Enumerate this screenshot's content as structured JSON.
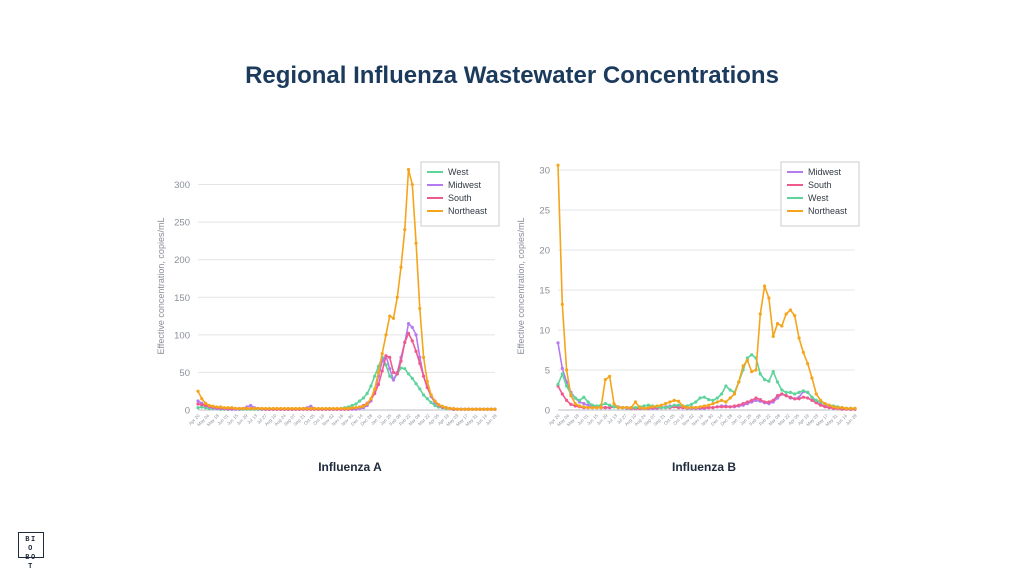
{
  "title": "Regional Influenza Wastewater Concentrations",
  "logo_text": "BIO BOT",
  "charts": [
    {
      "caption": "Influenza A"
    },
    {
      "caption": "Influenza B"
    }
  ],
  "chart_data": [
    {
      "type": "line",
      "title": "Influenza A",
      "xlabel": "",
      "ylabel": "Effective concentration, copies/mL",
      "ylim": [
        0,
        330
      ],
      "yticks": [
        0,
        50,
        100,
        150,
        200,
        250,
        300
      ],
      "grid": true,
      "legend_position": "top-right",
      "x_tick_labels": [
        "Apr 20",
        "May 04",
        "May 18",
        "Jun 01",
        "Jun 15",
        "Jun 29",
        "Jul 13",
        "Jul 27",
        "Aug 10",
        "Aug 24",
        "Sep 07",
        "Sep 21",
        "Oct 05",
        "Oct 19",
        "Nov 02",
        "Nov 16",
        "Nov 30",
        "Dec 14",
        "Dec 28",
        "Jan 11",
        "Jan 25",
        "Feb 08",
        "Feb 22",
        "Mar 08",
        "Mar 22",
        "Apr 05",
        "Apr 19",
        "May 03",
        "May 17",
        "May 31",
        "Jun 14",
        "Jun 28"
      ],
      "series": [
        {
          "name": "West",
          "color": "#5ed39a",
          "values": [
            3,
            4,
            3,
            2,
            2,
            2,
            1,
            1,
            1,
            1,
            1,
            1,
            1,
            1,
            1,
            1,
            1,
            1,
            1,
            1,
            1,
            1,
            1,
            1,
            1,
            1,
            1,
            1,
            1,
            1,
            1,
            1,
            1,
            1,
            1,
            1,
            1,
            1,
            2,
            3,
            4,
            6,
            8,
            12,
            16,
            22,
            32,
            45,
            58,
            70,
            60,
            45,
            40,
            48,
            56,
            55,
            48,
            42,
            35,
            28,
            20,
            15,
            10,
            6,
            4,
            3,
            2,
            2,
            1,
            1,
            1,
            1,
            1,
            1,
            1,
            1,
            1,
            1,
            1,
            1
          ]
        },
        {
          "name": "Midwest",
          "color": "#b57aef",
          "values": [
            12,
            9,
            6,
            4,
            3,
            2,
            2,
            2,
            1,
            1,
            1,
            1,
            2,
            4,
            6,
            3,
            2,
            1,
            1,
            1,
            1,
            1,
            1,
            1,
            1,
            1,
            1,
            1,
            2,
            3,
            5,
            2,
            1,
            1,
            1,
            1,
            1,
            1,
            1,
            1,
            1,
            1,
            1,
            2,
            3,
            6,
            12,
            25,
            45,
            65,
            72,
            55,
            40,
            50,
            70,
            90,
            115,
            110,
            100,
            70,
            45,
            30,
            18,
            10,
            6,
            4,
            3,
            2,
            1,
            1,
            1,
            1,
            1,
            1,
            1,
            1,
            1,
            1,
            1,
            1
          ]
        },
        {
          "name": "South",
          "color": "#ef5a8e",
          "values": [
            8,
            7,
            6,
            5,
            4,
            3,
            3,
            2,
            2,
            2,
            2,
            2,
            2,
            2,
            2,
            2,
            2,
            2,
            1,
            1,
            1,
            1,
            1,
            1,
            1,
            1,
            1,
            1,
            1,
            1,
            1,
            1,
            1,
            1,
            1,
            1,
            1,
            1,
            1,
            1,
            1,
            2,
            3,
            4,
            6,
            9,
            14,
            22,
            34,
            52,
            72,
            70,
            50,
            48,
            65,
            90,
            102,
            92,
            78,
            62,
            45,
            30,
            20,
            12,
            7,
            4,
            3,
            2,
            1,
            1,
            1,
            1,
            1,
            1,
            1,
            1,
            1,
            1,
            1,
            1
          ]
        },
        {
          "name": "Northeast",
          "color": "#f4a51c",
          "values": [
            25,
            15,
            9,
            6,
            5,
            4,
            4,
            3,
            3,
            3,
            2,
            2,
            2,
            2,
            2,
            2,
            2,
            2,
            2,
            2,
            2,
            2,
            2,
            2,
            2,
            2,
            2,
            2,
            2,
            2,
            2,
            2,
            2,
            2,
            2,
            2,
            2,
            2,
            2,
            2,
            2,
            3,
            3,
            4,
            5,
            8,
            15,
            28,
            50,
            75,
            100,
            125,
            122,
            150,
            190,
            240,
            320,
            300,
            222,
            135,
            70,
            38,
            20,
            12,
            7,
            5,
            3,
            2,
            2,
            1,
            1,
            1,
            1,
            1,
            1,
            1,
            1,
            1,
            1,
            1
          ]
        }
      ]
    },
    {
      "type": "line",
      "title": "Influenza B",
      "xlabel": "",
      "ylabel": "Effective concentration, copies/mL",
      "ylim": [
        0,
        31
      ],
      "yticks": [
        0,
        5,
        10,
        15,
        20,
        25,
        30
      ],
      "grid": true,
      "legend_position": "top-right",
      "x_tick_labels": [
        "Apr 20",
        "May 04",
        "May 18",
        "Jun 01",
        "Jun 15",
        "Jun 29",
        "Jul 13",
        "Jul 27",
        "Aug 10",
        "Aug 24",
        "Sep 07",
        "Sep 21",
        "Oct 05",
        "Oct 19",
        "Nov 02",
        "Nov 16",
        "Nov 30",
        "Dec 14",
        "Dec 28",
        "Jan 11",
        "Jan 25",
        "Feb 08",
        "Feb 22",
        "Mar 08",
        "Mar 22",
        "Apr 05",
        "Apr 19",
        "May 03",
        "May 17",
        "May 31",
        "Jun 14",
        "Jun 28"
      ],
      "series": [
        {
          "name": "Midwest",
          "color": "#b57aef",
          "values": [
            8.4,
            5.2,
            3.5,
            2.2,
            1.5,
            1.0,
            0.8,
            0.6,
            0.5,
            0.4,
            0.3,
            0.3,
            0.3,
            0.4,
            0.4,
            0.3,
            0.2,
            0.2,
            0.2,
            0.2,
            0.2,
            0.2,
            0.2,
            0.2,
            0.3,
            0.4,
            0.5,
            0.5,
            0.4,
            0.3,
            0.2,
            0.2,
            0.2,
            0.2,
            0.2,
            0.3,
            0.3,
            0.4,
            0.5,
            0.5,
            0.4,
            0.4,
            0.5,
            0.6,
            0.8,
            1.0,
            1.2,
            1.1,
            0.9,
            0.8,
            1.0,
            1.5,
            2.0,
            1.8,
            1.5,
            1.4,
            1.6,
            2.3,
            2.2,
            1.6,
            1.0,
            0.7,
            0.5,
            0.4,
            0.3,
            0.2,
            0.2,
            0.2,
            0.1,
            0.1
          ]
        },
        {
          "name": "South",
          "color": "#ef5a8e",
          "values": [
            3.0,
            2.0,
            1.2,
            0.7,
            0.5,
            0.4,
            0.3,
            0.3,
            0.3,
            0.3,
            0.3,
            0.3,
            0.3,
            0.4,
            0.3,
            0.3,
            0.3,
            0.2,
            0.2,
            0.2,
            0.2,
            0.2,
            0.3,
            0.3,
            0.3,
            0.3,
            0.3,
            0.4,
            0.3,
            0.3,
            0.3,
            0.3,
            0.3,
            0.3,
            0.3,
            0.3,
            0.3,
            0.4,
            0.4,
            0.4,
            0.4,
            0.5,
            0.6,
            0.8,
            1.0,
            1.2,
            1.5,
            1.3,
            1.0,
            1.0,
            1.2,
            1.8,
            2.0,
            1.8,
            1.6,
            1.4,
            1.4,
            1.6,
            1.5,
            1.2,
            0.9,
            0.6,
            0.4,
            0.3,
            0.2,
            0.2,
            0.1,
            0.1,
            0.1,
            0.1
          ]
        },
        {
          "name": "West",
          "color": "#5ed39a",
          "values": [
            3.2,
            4.5,
            3.0,
            2.0,
            1.5,
            1.2,
            1.6,
            1.0,
            0.6,
            0.5,
            0.6,
            0.8,
            0.6,
            0.4,
            0.3,
            0.3,
            0.3,
            0.3,
            0.3,
            0.4,
            0.5,
            0.6,
            0.5,
            0.4,
            0.3,
            0.3,
            0.4,
            0.6,
            0.6,
            0.5,
            0.5,
            0.7,
            1.0,
            1.5,
            1.6,
            1.3,
            1.2,
            1.5,
            2.0,
            3.0,
            2.5,
            2.2,
            3.5,
            5.0,
            6.5,
            6.9,
            6.5,
            4.5,
            3.8,
            3.6,
            4.8,
            3.5,
            2.5,
            2.2,
            2.2,
            2.0,
            2.2,
            2.4,
            2.2,
            1.6,
            1.2,
            1.0,
            0.8,
            0.6,
            0.5,
            0.4,
            0.3,
            0.2,
            0.2,
            0.2
          ]
        },
        {
          "name": "Northeast",
          "color": "#f4a51c",
          "values": [
            30.6,
            13.2,
            5.0,
            1.8,
            0.8,
            0.5,
            0.4,
            0.3,
            0.3,
            0.3,
            0.3,
            3.8,
            4.2,
            0.8,
            0.3,
            0.3,
            0.3,
            0.3,
            1.0,
            0.3,
            0.2,
            0.3,
            0.4,
            0.5,
            0.6,
            0.8,
            1.0,
            1.2,
            1.1,
            0.5,
            0.3,
            0.3,
            0.3,
            0.4,
            0.5,
            0.6,
            0.8,
            1.0,
            1.2,
            1.0,
            1.5,
            2.0,
            3.5,
            5.5,
            6.2,
            4.8,
            5.0,
            12.0,
            15.5,
            14.0,
            9.2,
            10.8,
            10.5,
            12.0,
            12.5,
            11.8,
            9.0,
            7.2,
            5.8,
            4.0,
            2.0,
            1.2,
            0.8,
            0.6,
            0.4,
            0.3,
            0.3,
            0.2,
            0.2,
            0.2
          ]
        }
      ]
    }
  ]
}
